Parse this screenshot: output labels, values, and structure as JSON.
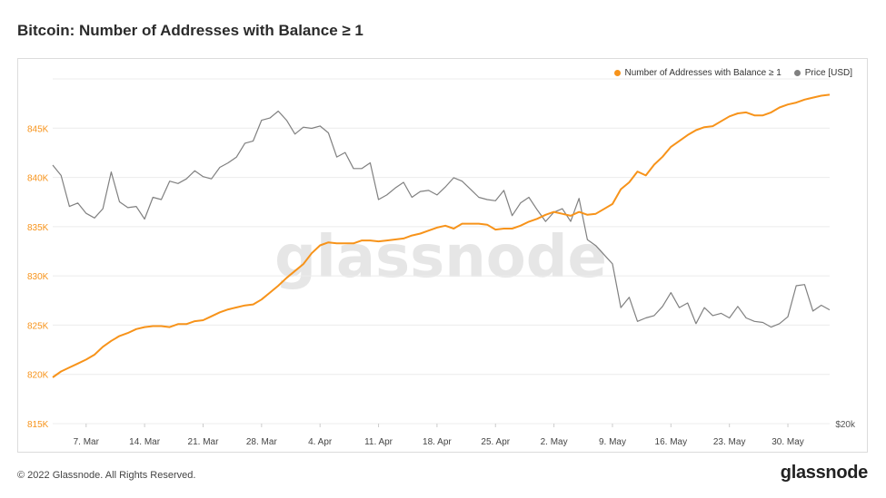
{
  "page": {
    "title": "Bitcoin: Number of Addresses with Balance ≥ 1"
  },
  "legend": [
    {
      "label": "Number of Addresses with Balance ≥ 1",
      "color": "#f7931a"
    },
    {
      "label": "Price [USD]",
      "color": "#808080"
    }
  ],
  "watermark": "glassnode",
  "footer": {
    "copyright": "© 2022 Glassnode. All Rights Reserved.",
    "logo": "glassnode"
  },
  "colors": {
    "addresses": "#f7931a",
    "price": "#808080",
    "grid": "#ececec",
    "axis_left": "#f7931a",
    "axis_right": "#555555"
  },
  "chart_data": {
    "type": "line",
    "title": "Bitcoin: Number of Addresses with Balance ≥ 1",
    "x_ticks": [
      "7. Mar",
      "14. Mar",
      "21. Mar",
      "28. Mar",
      "4. Apr",
      "11. Apr",
      "18. Apr",
      "25. Apr",
      "2. May",
      "9. May",
      "16. May",
      "23. May",
      "30. May"
    ],
    "x_dates": [
      "2022-03-03",
      "2022-03-04",
      "2022-03-05",
      "2022-03-06",
      "2022-03-07",
      "2022-03-08",
      "2022-03-09",
      "2022-03-10",
      "2022-03-11",
      "2022-03-12",
      "2022-03-13",
      "2022-03-14",
      "2022-03-15",
      "2022-03-16",
      "2022-03-17",
      "2022-03-18",
      "2022-03-19",
      "2022-03-20",
      "2022-03-21",
      "2022-03-22",
      "2022-03-23",
      "2022-03-24",
      "2022-03-25",
      "2022-03-26",
      "2022-03-27",
      "2022-03-28",
      "2022-03-29",
      "2022-03-30",
      "2022-03-31",
      "2022-04-01",
      "2022-04-02",
      "2022-04-03",
      "2022-04-04",
      "2022-04-05",
      "2022-04-06",
      "2022-04-07",
      "2022-04-08",
      "2022-04-09",
      "2022-04-10",
      "2022-04-11",
      "2022-04-12",
      "2022-04-13",
      "2022-04-14",
      "2022-04-15",
      "2022-04-16",
      "2022-04-17",
      "2022-04-18",
      "2022-04-19",
      "2022-04-20",
      "2022-04-21",
      "2022-04-22",
      "2022-04-23",
      "2022-04-24",
      "2022-04-25",
      "2022-04-26",
      "2022-04-27",
      "2022-04-28",
      "2022-04-29",
      "2022-04-30",
      "2022-05-01",
      "2022-05-02",
      "2022-05-03",
      "2022-05-04",
      "2022-05-05",
      "2022-05-06",
      "2022-05-07",
      "2022-05-08",
      "2022-05-09",
      "2022-05-10",
      "2022-05-11",
      "2022-05-12",
      "2022-05-13",
      "2022-05-14",
      "2022-05-15",
      "2022-05-16",
      "2022-05-17",
      "2022-05-18",
      "2022-05-19",
      "2022-05-20",
      "2022-05-21",
      "2022-05-22",
      "2022-05-23",
      "2022-05-24",
      "2022-05-25",
      "2022-05-26",
      "2022-05-27",
      "2022-05-28",
      "2022-05-29",
      "2022-05-30",
      "2022-05-31",
      "2022-06-01",
      "2022-06-02",
      "2022-06-03",
      "2022-06-04"
    ],
    "y_left": {
      "ticks": [
        "815K",
        "820K",
        "825K",
        "830K",
        "835K",
        "840K",
        "845K"
      ],
      "min": 815000,
      "max": 850000
    },
    "y_right": {
      "ticks": [
        "$20k"
      ]
    },
    "grid": true,
    "legend_position": "top-right",
    "series": [
      {
        "name": "Number of Addresses with Balance ≥ 1",
        "axis": "left",
        "values": [
          819700,
          820300,
          820700,
          821100,
          821500,
          822000,
          822800,
          823400,
          823900,
          824200,
          824600,
          824800,
          824900,
          824900,
          824800,
          825100,
          825100,
          825400,
          825500,
          825900,
          826300,
          826600,
          826800,
          827000,
          827100,
          827600,
          828300,
          829000,
          829800,
          830500,
          831200,
          832300,
          833100,
          833400,
          833300,
          833300,
          833300,
          833600,
          833600,
          833500,
          833600,
          833700,
          833800,
          834100,
          834300,
          834600,
          834900,
          835100,
          834800,
          835300,
          835300,
          835300,
          835200,
          834700,
          834800,
          834800,
          835100,
          835500,
          835800,
          836200,
          836500,
          836300,
          836100,
          836500,
          836200,
          836300,
          836800,
          837300,
          838800,
          839500,
          840600,
          840200,
          841300,
          842100,
          843100,
          843700,
          844300,
          844800,
          845100,
          845200,
          845700,
          846200,
          846500,
          846600,
          846300,
          846300,
          846600,
          847100,
          847400,
          847600,
          847900,
          848100,
          848300,
          848400
        ]
      },
      {
        "name": "Price [USD]",
        "axis": "right",
        "values": [
          42500,
          41600,
          38900,
          39200,
          38300,
          37900,
          38700,
          41900,
          39300,
          38800,
          38900,
          37800,
          39700,
          39500,
          41100,
          40900,
          41300,
          42000,
          41500,
          41300,
          42300,
          42700,
          43200,
          44400,
          44600,
          46400,
          46600,
          47200,
          46400,
          45200,
          45800,
          45700,
          45900,
          45300,
          43200,
          43600,
          42200,
          42200,
          42700,
          39500,
          39900,
          40500,
          41000,
          39700,
          40200,
          40300,
          39900,
          40600,
          41400,
          41100,
          40400,
          39700,
          39500,
          39400,
          40300,
          38100,
          39200,
          39700,
          38600,
          37600,
          38400,
          38700,
          37600,
          39600,
          36000,
          35500,
          34700,
          33900,
          30100,
          31000,
          28900,
          29200,
          29400,
          30200,
          31400,
          30100,
          30500,
          28700,
          30100,
          29400,
          29600,
          29200,
          30200,
          29200,
          28900,
          28800,
          28400,
          28700,
          29300,
          32000,
          32100,
          29800,
          30300,
          29900
        ]
      }
    ]
  }
}
